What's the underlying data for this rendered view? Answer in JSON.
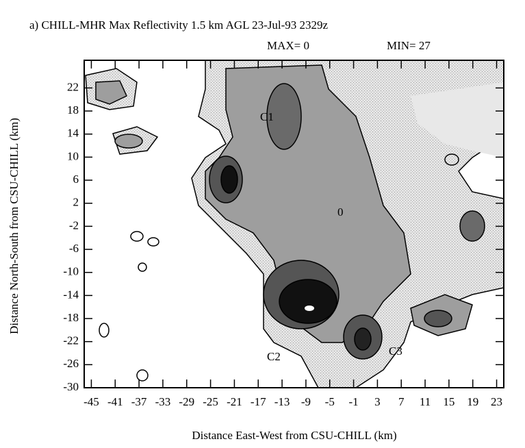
{
  "chart_data": {
    "type": "contour",
    "title": "a)  CHILL-MHR Max Reflectivity  1.5 km AGL  23-Jul-93  2329z",
    "max_label": "MAX= 0",
    "min_label": "MIN= 27",
    "x_label": "Distance East-West from CSU-CHILL (km)",
    "y_label": "Distance North-South from CSU-CHILL (km)",
    "annotations": [
      "C1",
      "C2",
      "C3",
      "0"
    ],
    "xlim": [
      -46.2,
      24.2
    ],
    "ylim": [
      -30,
      26.8
    ],
    "xticks": [
      -45,
      -41,
      -37,
      -33,
      -29,
      -25,
      -21,
      -17,
      -13,
      -9,
      -5,
      -1,
      3,
      7,
      11,
      15,
      19,
      23
    ],
    "yticks": [
      -30,
      -26,
      -22,
      -18,
      -14,
      -10,
      -6,
      -2,
      2,
      6,
      10,
      14,
      18,
      22
    ]
  }
}
